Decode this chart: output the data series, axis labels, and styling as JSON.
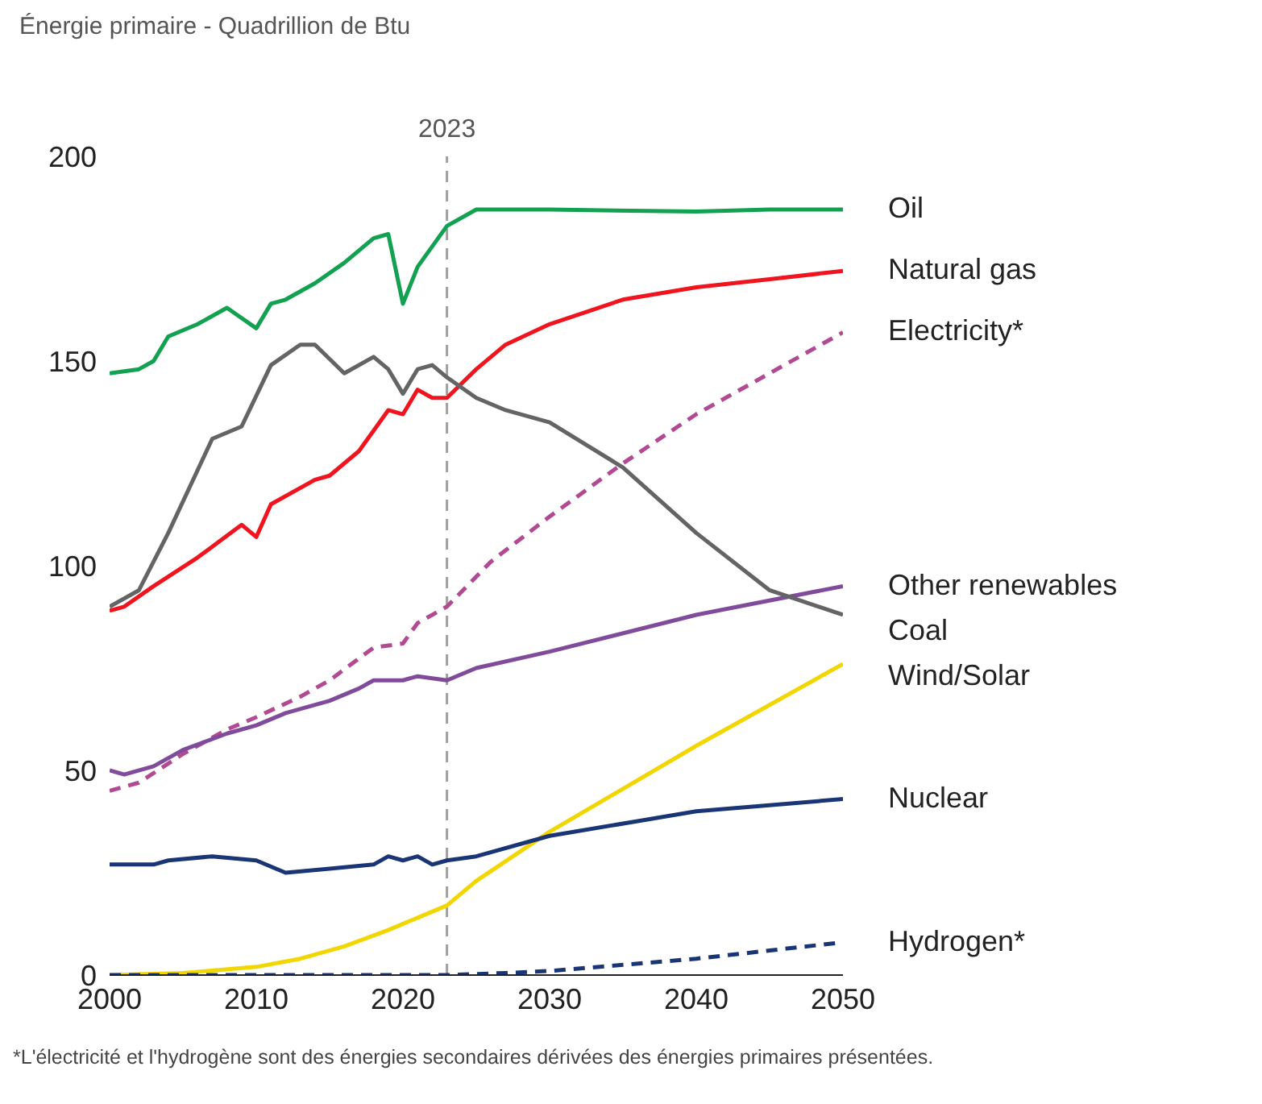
{
  "chart_data": {
    "type": "line",
    "title": "Énergie primaire - Quadrillion de Btu",
    "xlim": [
      2000,
      2050
    ],
    "xticks": [
      2000,
      2010,
      2020,
      2030,
      2040,
      2050
    ],
    "ylim": [
      0,
      200
    ],
    "yticks": [
      0,
      50,
      100,
      150,
      200
    ],
    "grid": false,
    "marker": "none",
    "line_style": "solid",
    "ref_lines": [
      {
        "axis": "x",
        "value": 2023,
        "label": "2023",
        "color": "#a0a0a0",
        "line_style": "dashed"
      }
    ],
    "annotations": [
      "*L'électricité et l'hydrogène sont des énergies secondaires dérivées des énergies primaires présentées."
    ],
    "series": [
      {
        "name": "Oil",
        "color": "#12a150",
        "x": [
          2000,
          2002,
          2003,
          2004,
          2006,
          2008,
          2010,
          2011,
          2012,
          2014,
          2016,
          2018,
          2019,
          2020,
          2021,
          2023,
          2025,
          2030,
          2040,
          2045,
          2050
        ],
        "values": [
          147,
          148,
          150,
          156,
          159,
          163,
          158,
          164,
          165,
          169,
          174,
          180,
          181,
          164,
          173,
          183,
          187,
          187,
          186.5,
          187,
          187
        ]
      },
      {
        "name": "Natural gas",
        "color": "#f0141e",
        "x": [
          2000,
          2001,
          2003,
          2006,
          2009,
          2010,
          2011,
          2014,
          2015,
          2017,
          2019,
          2020,
          2021,
          2022,
          2023,
          2025,
          2027,
          2030,
          2035,
          2040,
          2045,
          2050
        ],
        "values": [
          89,
          90,
          95,
          102,
          110,
          107,
          115,
          121,
          122,
          128,
          138,
          137,
          143,
          141,
          141,
          148,
          154,
          159,
          165,
          168,
          170,
          172
        ]
      },
      {
        "name": "Electricity*",
        "color": "#b24a93",
        "line_style": "dashed",
        "x": [
          2000,
          2002,
          2005,
          2008,
          2010,
          2013,
          2015,
          2018,
          2020,
          2021,
          2023,
          2026,
          2030,
          2035,
          2040,
          2045,
          2050
        ],
        "values": [
          45,
          47,
          54,
          60,
          63,
          68,
          72,
          80,
          81,
          86,
          90,
          101,
          112,
          125,
          137,
          147,
          157
        ]
      },
      {
        "name": "Other renewables",
        "color": "#7f4b9a",
        "x": [
          2000,
          2001,
          2003,
          2005,
          2008,
          2010,
          2012,
          2015,
          2017,
          2018,
          2020,
          2021,
          2023,
          2025,
          2030,
          2040,
          2050
        ],
        "values": [
          50,
          49,
          51,
          55,
          59,
          61,
          64,
          67,
          70,
          72,
          72,
          73,
          72,
          75,
          79,
          88,
          95
        ]
      },
      {
        "name": "Coal",
        "color": "#646464",
        "x": [
          2000,
          2002,
          2004,
          2007,
          2009,
          2011,
          2013,
          2014,
          2016,
          2018,
          2019,
          2020,
          2021,
          2022,
          2023,
          2025,
          2027,
          2030,
          2035,
          2040,
          2045,
          2050
        ],
        "values": [
          90,
          94,
          108,
          131,
          134,
          149,
          154,
          154,
          147,
          151,
          148,
          142,
          148,
          149,
          146,
          141,
          138,
          135,
          124,
          108,
          94,
          88
        ]
      },
      {
        "name": "Wind/Solar",
        "color": "#f2d600",
        "x": [
          2000,
          2005,
          2010,
          2013,
          2016,
          2019,
          2021,
          2023,
          2025,
          2030,
          2040,
          2050
        ],
        "values": [
          0,
          0.5,
          2,
          4,
          7,
          11,
          14,
          17,
          23,
          35,
          56,
          76
        ]
      },
      {
        "name": "Nuclear",
        "color": "#1a3575",
        "x": [
          2000,
          2003,
          2004,
          2007,
          2010,
          2012,
          2015,
          2018,
          2019,
          2020,
          2021,
          2022,
          2023,
          2025,
          2030,
          2040,
          2050
        ],
        "values": [
          27,
          27,
          28,
          29,
          28,
          25,
          26,
          27,
          29,
          28,
          29,
          27,
          28,
          29,
          34,
          40,
          43
        ]
      },
      {
        "name": "Hydrogen*",
        "color": "#1a3575",
        "line_style": "dashed",
        "x": [
          2000,
          2023,
          2027,
          2030,
          2035,
          2040,
          2045,
          2050
        ],
        "values": [
          0,
          0,
          0.5,
          1,
          2.5,
          4,
          6,
          8
        ]
      }
    ]
  }
}
